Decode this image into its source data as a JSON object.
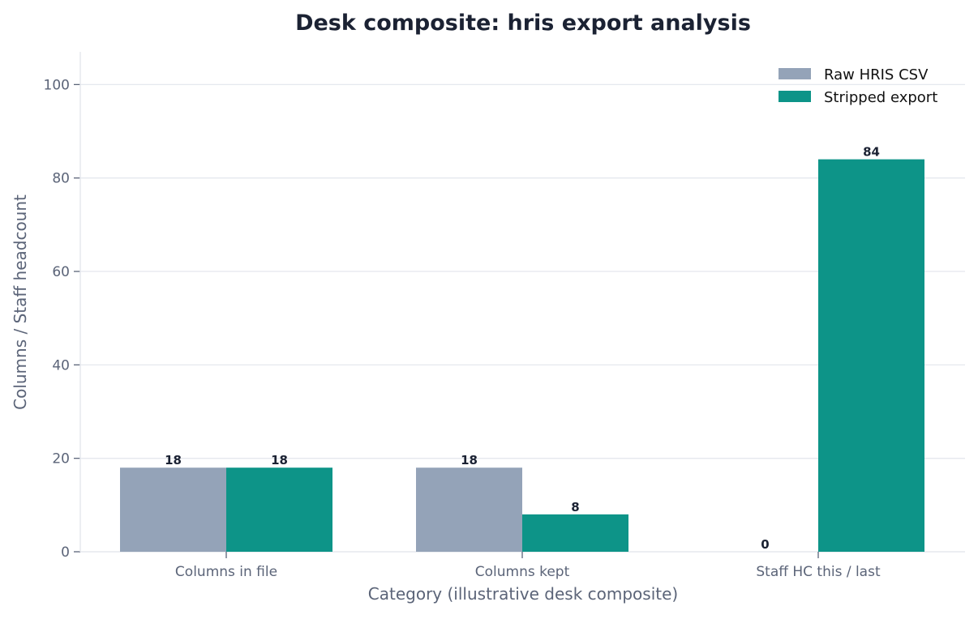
{
  "chart_data": {
    "type": "bar",
    "title": "Desk composite: hris export analysis",
    "xlabel": "Category (illustrative desk composite)",
    "ylabel": "Columns / Staff headcount",
    "categories": [
      "Columns in file",
      "Columns kept",
      "Staff HC this / last"
    ],
    "series": [
      {
        "name": "Raw HRIS CSV",
        "values": [
          18,
          18,
          0
        ],
        "color": "#94a3b8"
      },
      {
        "name": "Stripped export",
        "values": [
          18,
          8,
          84
        ],
        "color": "#0d9488"
      }
    ],
    "ylim": [
      0,
      107
    ],
    "yticks": [
      0,
      20,
      40,
      60,
      80,
      100
    ],
    "grid": true,
    "legend_position": "top-right"
  }
}
